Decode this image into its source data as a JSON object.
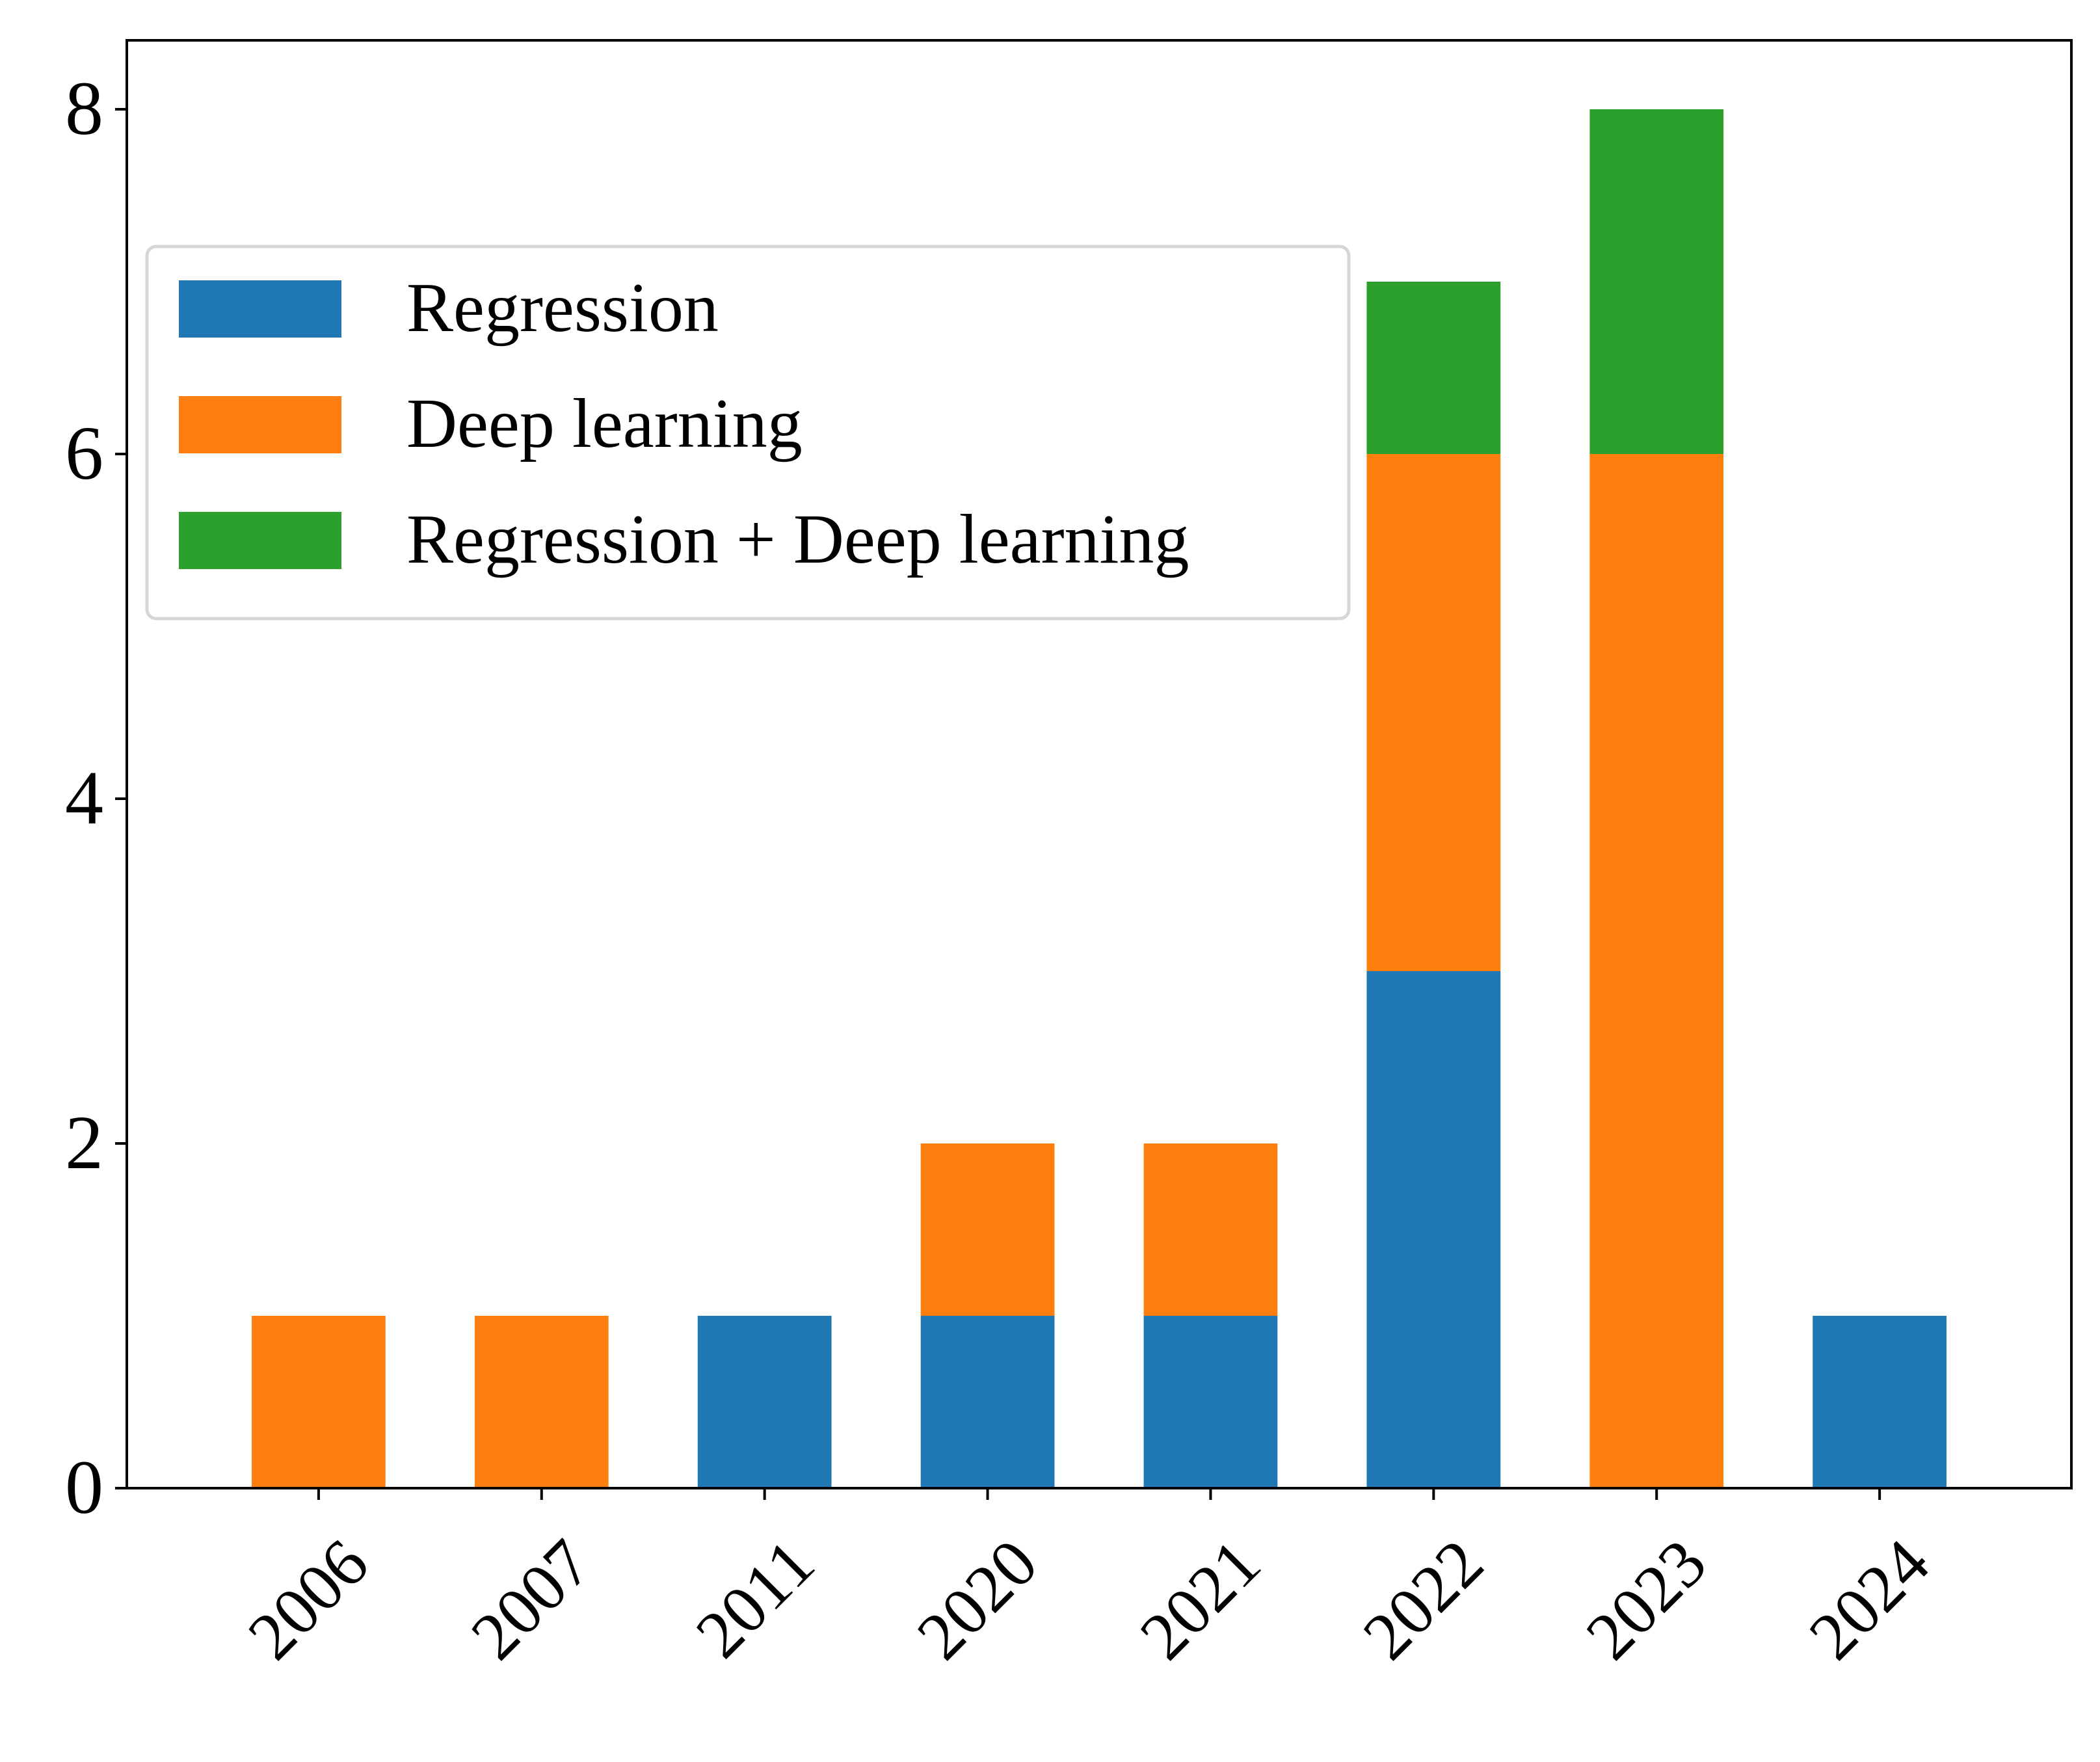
{
  "chart_data": {
    "type": "bar",
    "stacked": true,
    "categories": [
      "2006",
      "2007",
      "2011",
      "2020",
      "2021",
      "2022",
      "2023",
      "2024"
    ],
    "series": [
      {
        "name": "Regression",
        "color": "#1f77b4",
        "values": [
          0,
          0,
          1,
          1,
          1,
          3,
          0,
          1
        ]
      },
      {
        "name": "Deep learning",
        "color": "#ff7f0e",
        "values": [
          1,
          1,
          0,
          1,
          1,
          3,
          6,
          0
        ]
      },
      {
        "name": "Regression + Deep learning",
        "color": "#2ca02c",
        "values": [
          0,
          0,
          0,
          0,
          0,
          1,
          2,
          0
        ]
      }
    ],
    "yticks": [
      "0",
      "2",
      "4",
      "6",
      "8"
    ],
    "ylim": [
      0,
      8.4
    ],
    "xlabel": "",
    "ylabel": "",
    "title": "",
    "legend_position": "upper-left",
    "grid": false
  }
}
